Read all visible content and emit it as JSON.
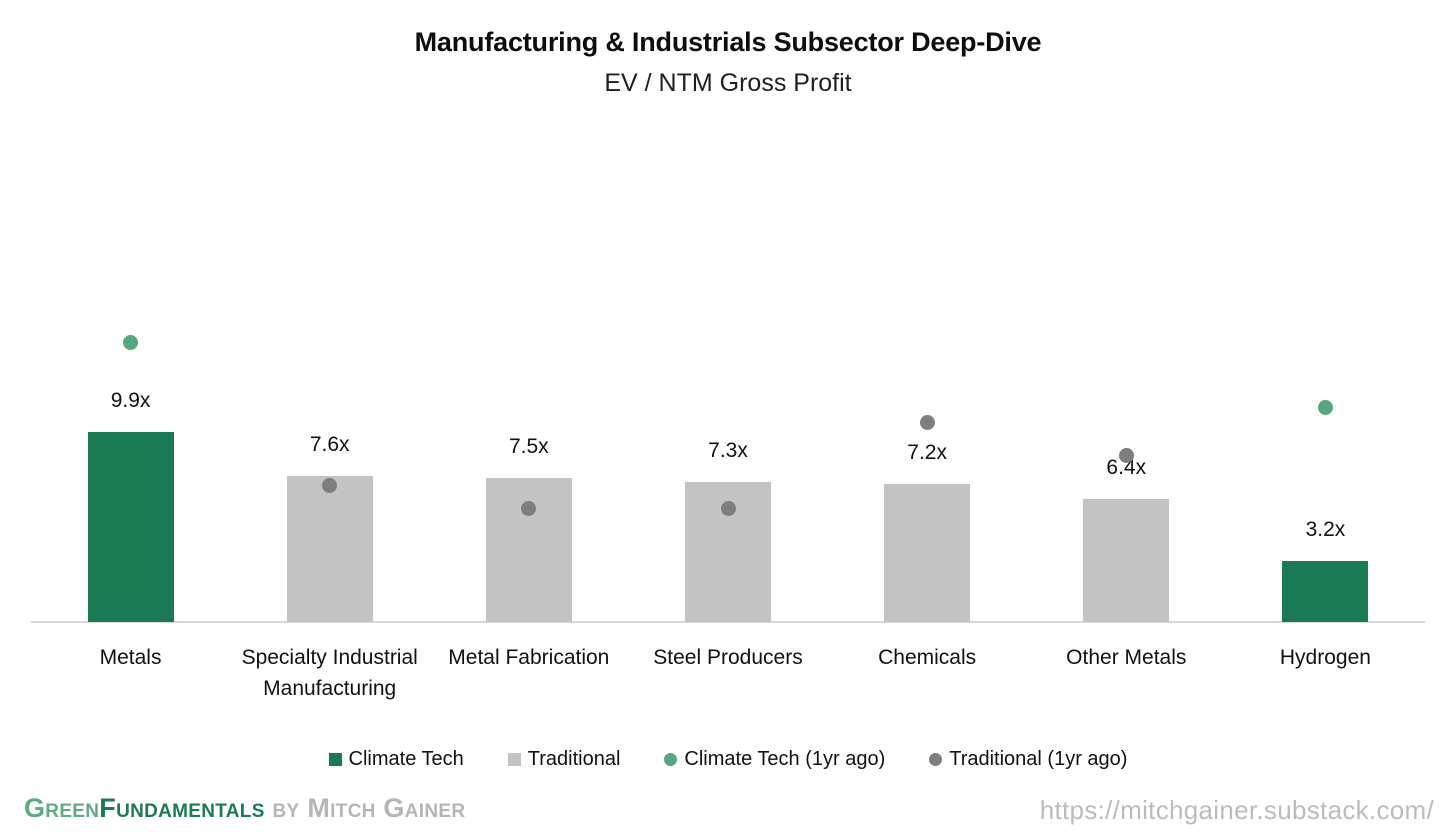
{
  "chart_data": {
    "type": "bar",
    "title": "Manufacturing & Industrials Subsector Deep-Dive",
    "subtitle": "EV / NTM Gross Profit",
    "value_suffix": "x",
    "categories": [
      "Metals",
      "Specialty Industrial Manufacturing",
      "Metal Fabrication",
      "Steel Producers",
      "Chemicals",
      "Other Metals",
      "Hydrogen"
    ],
    "category_group": [
      "Climate Tech",
      "Traditional",
      "Traditional",
      "Traditional",
      "Traditional",
      "Traditional",
      "Climate Tech"
    ],
    "series": [
      {
        "name": "EV / NTM Gross Profit (current, bars)",
        "type": "bar",
        "values": [
          9.9,
          7.6,
          7.5,
          7.3,
          7.2,
          6.4,
          3.2
        ],
        "data_labels": [
          "9.9x",
          "7.6x",
          "7.5x",
          "7.3x",
          "7.2x",
          "6.4x",
          "3.2x"
        ]
      },
      {
        "name": "EV / NTM Gross Profit (1yr ago, dots)",
        "type": "point",
        "values_estimated": true,
        "values": [
          14.6,
          7.1,
          5.9,
          5.9,
          10.4,
          8.7,
          11.2
        ]
      }
    ],
    "ylim": [
      0,
      16
    ],
    "y_axis_visible": false,
    "gridlines": false,
    "legend_position": "bottom"
  },
  "legend": {
    "entries": [
      {
        "label": "Climate Tech",
        "marker": "square",
        "color": "#1A7A54"
      },
      {
        "label": "Traditional",
        "marker": "square",
        "color": "#C3C3C3"
      },
      {
        "label": "Climate Tech (1yr ago)",
        "marker": "circle",
        "color": "#56A67E"
      },
      {
        "label": "Traditional (1yr ago)",
        "marker": "circle",
        "color": "#7E7E7E"
      }
    ]
  },
  "footer": {
    "brand_word1": "Green",
    "brand_word2": "Fundamentals",
    "brand_by": " by ",
    "brand_author": "Mitch Gainer",
    "url": "https://mitchgainer.substack.com/"
  },
  "colors": {
    "climate_bar": "#1A7A54",
    "traditional_bar": "#C3C3C3",
    "climate_dot": "#56A67E",
    "traditional_dot": "#7E7E7E",
    "axis_line": "#D9D9D9",
    "text": "#111111",
    "brand_green_light": "#5FA983",
    "brand_green_dark": "#1C7B52",
    "brand_gray": "#B5B5B5",
    "url_gray": "#BCBCBC"
  }
}
